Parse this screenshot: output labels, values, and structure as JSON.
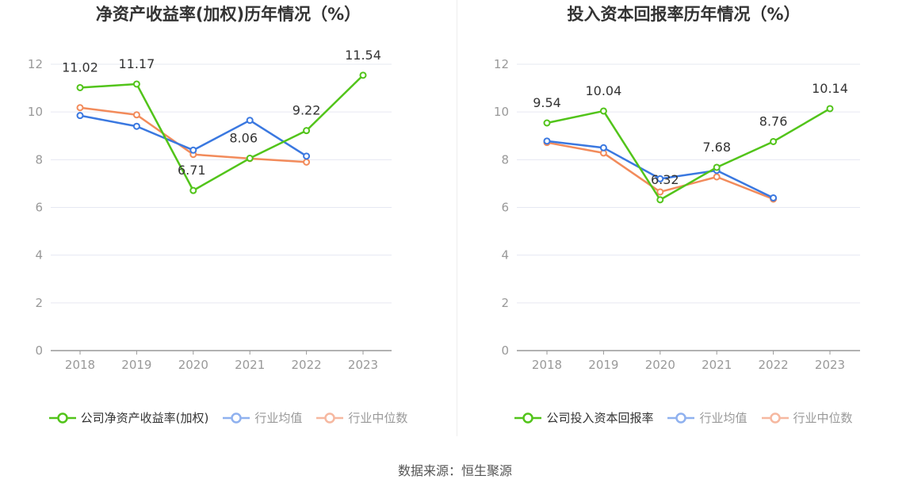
{
  "source_text": "数据来源：恒生聚源",
  "colors": {
    "company": "#52c41a",
    "avg": "#3a78e0",
    "median": "#f28b5b",
    "avg_legend": "#8fb1ef",
    "median_legend": "#f6b8a0"
  },
  "chart_data": [
    {
      "type": "line",
      "title": "净资产收益率(加权)历年情况（%）",
      "categories": [
        "2018",
        "2019",
        "2020",
        "2021",
        "2022",
        "2023"
      ],
      "ylim": [
        0,
        12
      ],
      "yticks": [
        "0",
        "2",
        "4",
        "6",
        "8",
        "10",
        "12"
      ],
      "legend_placement": "bottom",
      "series": [
        {
          "name": "公司净资产收益率(加权)",
          "key": "company",
          "values": [
            11.02,
            11.17,
            6.71,
            8.06,
            9.22,
            11.54
          ],
          "labels": [
            "11.02",
            "11.17",
            "6.71",
            "8.06",
            "9.22",
            "11.54"
          ]
        },
        {
          "name": "行业均值",
          "key": "avg",
          "values": [
            9.85,
            9.4,
            8.4,
            9.65,
            8.15,
            null
          ]
        },
        {
          "name": "行业中位数",
          "key": "median",
          "values": [
            10.18,
            9.88,
            8.22,
            8.05,
            7.9,
            null
          ]
        }
      ]
    },
    {
      "type": "line",
      "title": "投入资本回报率历年情况（%）",
      "categories": [
        "2018",
        "2019",
        "2020",
        "2021",
        "2022",
        "2023"
      ],
      "ylim": [
        0,
        12
      ],
      "yticks": [
        "0",
        "2",
        "4",
        "6",
        "8",
        "10",
        "12"
      ],
      "legend_placement": "bottom",
      "series": [
        {
          "name": "公司投入资本回报率",
          "key": "company",
          "values": [
            9.54,
            10.04,
            6.32,
            7.68,
            8.76,
            10.14
          ],
          "labels": [
            "9.54",
            "10.04",
            "6.32",
            "7.68",
            "8.76",
            "10.14"
          ]
        },
        {
          "name": "行业均值",
          "key": "avg",
          "values": [
            8.78,
            8.5,
            7.2,
            7.55,
            6.4,
            null
          ]
        },
        {
          "name": "行业中位数",
          "key": "median",
          "values": [
            8.72,
            8.28,
            6.65,
            7.28,
            6.35,
            null
          ]
        }
      ]
    }
  ]
}
